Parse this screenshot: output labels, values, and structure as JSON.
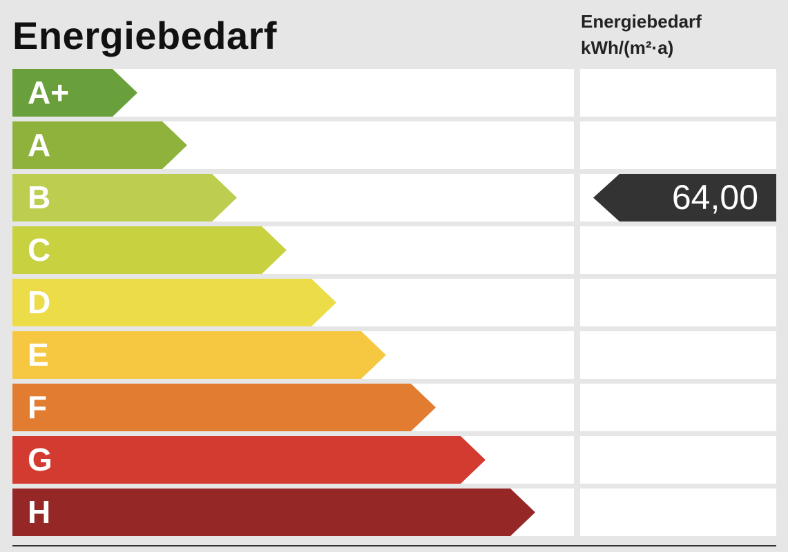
{
  "header": {
    "title": "Energiebedarf",
    "column_title_line1": "Energiebedarf",
    "column_title_line2": "kWh/(m²·a)"
  },
  "chart_data": {
    "type": "bar",
    "categories": [
      "A+",
      "A",
      "B",
      "C",
      "D",
      "E",
      "F",
      "G",
      "H"
    ],
    "colors": [
      "#6aa03b",
      "#8fb23d",
      "#bccd4f",
      "#c8d140",
      "#ecdc48",
      "#f6c842",
      "#e17c30",
      "#d43b30",
      "#952827"
    ],
    "marker": {
      "category": "B",
      "value": "64,00",
      "color": "#333333"
    }
  }
}
